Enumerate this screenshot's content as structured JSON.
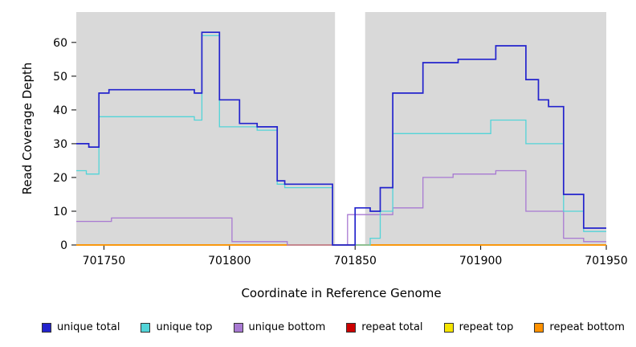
{
  "chart_data": {
    "type": "line",
    "subtype": "step-coverage",
    "title": "",
    "xlabel": "Coordinate in Reference Genome",
    "ylabel": "Read Coverage Depth",
    "xlim": [
      701739,
      701950
    ],
    "ylim": [
      0,
      69
    ],
    "x_ticks": [
      701750,
      701800,
      701850,
      701900,
      701950
    ],
    "y_ticks": [
      0,
      10,
      20,
      30,
      40,
      50,
      60
    ],
    "grid": false,
    "legend_position": "bottom",
    "plot_bg": "#d9d9d9",
    "gap_region": [
      701842,
      701854
    ],
    "series": [
      {
        "name": "repeat total",
        "color": "#cc0000",
        "width": 1.4,
        "points": [
          [
            701739,
            0
          ]
        ]
      },
      {
        "name": "repeat top",
        "color": "#f5e400",
        "width": 1.4,
        "points": [
          [
            701739,
            0
          ]
        ]
      },
      {
        "name": "repeat bottom",
        "color": "#ff9100",
        "width": 1.6,
        "points": [
          [
            701739,
            0
          ]
        ]
      },
      {
        "name": "unique bottom",
        "color": "#a879d2",
        "width": 1.3,
        "points": [
          [
            701739,
            7
          ],
          [
            701753,
            8
          ],
          [
            701801,
            1
          ],
          [
            701823,
            0
          ],
          [
            701847,
            9
          ],
          [
            701865,
            11
          ],
          [
            701877,
            20
          ],
          [
            701889,
            21
          ],
          [
            701906,
            22
          ],
          [
            701918,
            10
          ],
          [
            701933,
            2
          ],
          [
            701941,
            1
          ]
        ]
      },
      {
        "name": "unique top",
        "color": "#52d4d8",
        "width": 1.3,
        "points": [
          [
            701739,
            22
          ],
          [
            701743,
            21
          ],
          [
            701748,
            38
          ],
          [
            701786,
            37
          ],
          [
            701789,
            62
          ],
          [
            701796,
            35
          ],
          [
            701811,
            34
          ],
          [
            701819,
            18
          ],
          [
            701822,
            17
          ],
          [
            701841,
            0
          ],
          [
            701856,
            2
          ],
          [
            701860,
            10
          ],
          [
            701865,
            33
          ],
          [
            701904,
            37
          ],
          [
            701918,
            30
          ],
          [
            701933,
            10
          ],
          [
            701941,
            4
          ]
        ]
      },
      {
        "name": "unique total",
        "color": "#2323cd",
        "width": 1.7,
        "points": [
          [
            701739,
            30
          ],
          [
            701744,
            29
          ],
          [
            701748,
            45
          ],
          [
            701752,
            46
          ],
          [
            701786,
            45
          ],
          [
            701789,
            63
          ],
          [
            701796,
            43
          ],
          [
            701804,
            36
          ],
          [
            701811,
            35
          ],
          [
            701819,
            19
          ],
          [
            701822,
            18
          ],
          [
            701841,
            0
          ],
          [
            701850,
            11
          ],
          [
            701856,
            10
          ],
          [
            701860,
            17
          ],
          [
            701865,
            45
          ],
          [
            701877,
            54
          ],
          [
            701891,
            55
          ],
          [
            701906,
            59
          ],
          [
            701918,
            49
          ],
          [
            701923,
            43
          ],
          [
            701927,
            41
          ],
          [
            701933,
            15
          ],
          [
            701941,
            5
          ]
        ]
      }
    ],
    "legend": [
      {
        "label": "unique total",
        "color": "#2323cd"
      },
      {
        "label": "unique top",
        "color": "#52d4d8"
      },
      {
        "label": "unique bottom",
        "color": "#a879d2"
      },
      {
        "label": "repeat total",
        "color": "#cc0000"
      },
      {
        "label": "repeat top",
        "color": "#f5e400"
      },
      {
        "label": "repeat bottom",
        "color": "#ff9100"
      }
    ]
  }
}
